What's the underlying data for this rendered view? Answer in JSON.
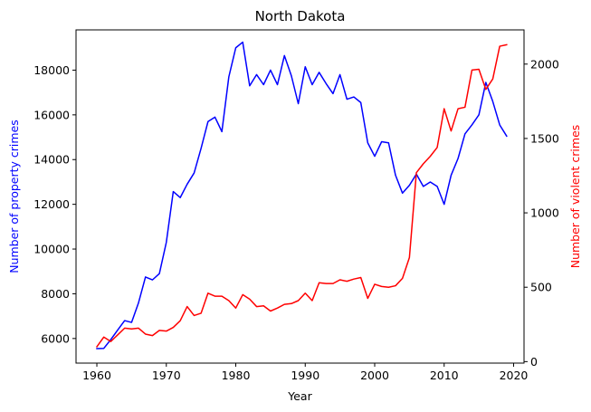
{
  "chart_data": {
    "type": "line",
    "title": "North Dakota",
    "xlabel": "Year",
    "ylabel_left": "Number of property crimes",
    "ylabel_right": "Number of violent crimes",
    "xlim": [
      1957,
      2021.5
    ],
    "ylim_left": [
      4900,
      19800
    ],
    "ylim_right": [
      -10,
      2230
    ],
    "x_ticks": [
      1960,
      1970,
      1980,
      1990,
      2000,
      2010,
      2020
    ],
    "y_ticks_left": [
      6000,
      8000,
      10000,
      12000,
      14000,
      16000,
      18000
    ],
    "y_ticks_right": [
      0,
      500,
      1000,
      1500,
      2000
    ],
    "grid": false,
    "colors": {
      "left": "#0000ff",
      "right": "#ff0000"
    },
    "x": [
      1960,
      1961,
      1962,
      1963,
      1964,
      1965,
      1966,
      1967,
      1968,
      1969,
      1970,
      1971,
      1972,
      1973,
      1974,
      1975,
      1976,
      1977,
      1978,
      1979,
      1980,
      1981,
      1982,
      1983,
      1984,
      1985,
      1986,
      1987,
      1988,
      1989,
      1990,
      1991,
      1992,
      1993,
      1994,
      1995,
      1996,
      1997,
      1998,
      1999,
      2000,
      2001,
      2002,
      2003,
      2004,
      2005,
      2006,
      2007,
      2008,
      2009,
      2010,
      2011,
      2012,
      2013,
      2014,
      2015,
      2016,
      2017,
      2018,
      2019
    ],
    "series": [
      {
        "name": "Number of property crimes",
        "axis": "left",
        "color": "#0000ff",
        "values": [
          5550,
          5560,
          5950,
          6380,
          6800,
          6720,
          7600,
          8750,
          8620,
          8900,
          10300,
          12570,
          12300,
          12900,
          13400,
          14500,
          15700,
          15900,
          15250,
          17700,
          19000,
          19250,
          17300,
          17800,
          17350,
          18000,
          17350,
          18650,
          17750,
          16500,
          18150,
          17350,
          17900,
          17400,
          16950,
          17800,
          16700,
          16800,
          16550,
          14750,
          14150,
          14800,
          14750,
          13300,
          12500,
          12850,
          13350,
          12800,
          13000,
          12800,
          12000,
          13300,
          14050,
          15150,
          15550,
          16000,
          17450,
          16600,
          15550,
          15050
        ]
      },
      {
        "name": "Number of violent crimes",
        "axis": "right",
        "color": "#ff0000",
        "values": [
          100,
          165,
          135,
          180,
          225,
          220,
          225,
          185,
          175,
          210,
          205,
          230,
          275,
          370,
          310,
          325,
          460,
          440,
          440,
          410,
          360,
          450,
          420,
          370,
          375,
          340,
          360,
          385,
          390,
          410,
          460,
          410,
          530,
          525,
          525,
          550,
          540,
          555,
          565,
          425,
          520,
          505,
          500,
          510,
          560,
          700,
          1270,
          1330,
          1380,
          1440,
          1700,
          1550,
          1700,
          1710,
          1960,
          1965,
          1830,
          1900,
          2120,
          2130
        ]
      }
    ]
  }
}
